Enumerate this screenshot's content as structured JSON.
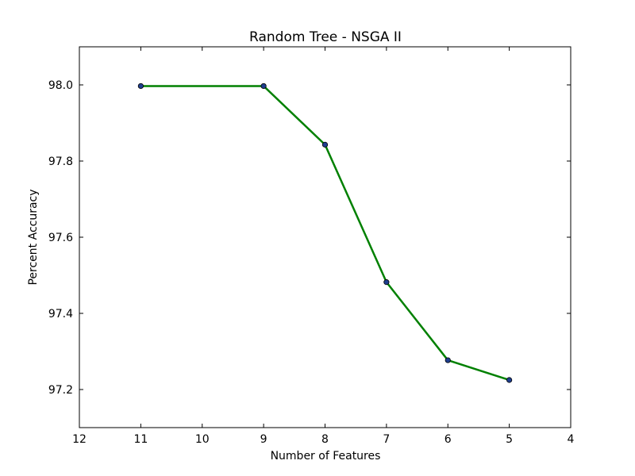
{
  "chart_data": {
    "type": "line",
    "title": "Random Tree - NSGA II",
    "xlabel": "Number of Features",
    "ylabel": "Percent Accuracy",
    "xlim": [
      12,
      4
    ],
    "ylim": [
      97.1,
      98.1
    ],
    "x_reversed": true,
    "xticks": [
      12,
      11,
      10,
      9,
      8,
      7,
      6,
      5,
      4
    ],
    "yticks": [
      97.2,
      97.4,
      97.6,
      97.8,
      98.0
    ],
    "ytick_labels": [
      "97.2",
      "97.4",
      "97.6",
      "97.8",
      "98.0"
    ],
    "grid": false,
    "series": [
      {
        "x": [
          11,
          9,
          8,
          7,
          6,
          5
        ],
        "y": [
          97.997,
          97.997,
          97.843,
          97.482,
          97.277,
          97.225
        ],
        "line_color": "#008000",
        "marker_color": "#1f3f8f"
      }
    ]
  }
}
